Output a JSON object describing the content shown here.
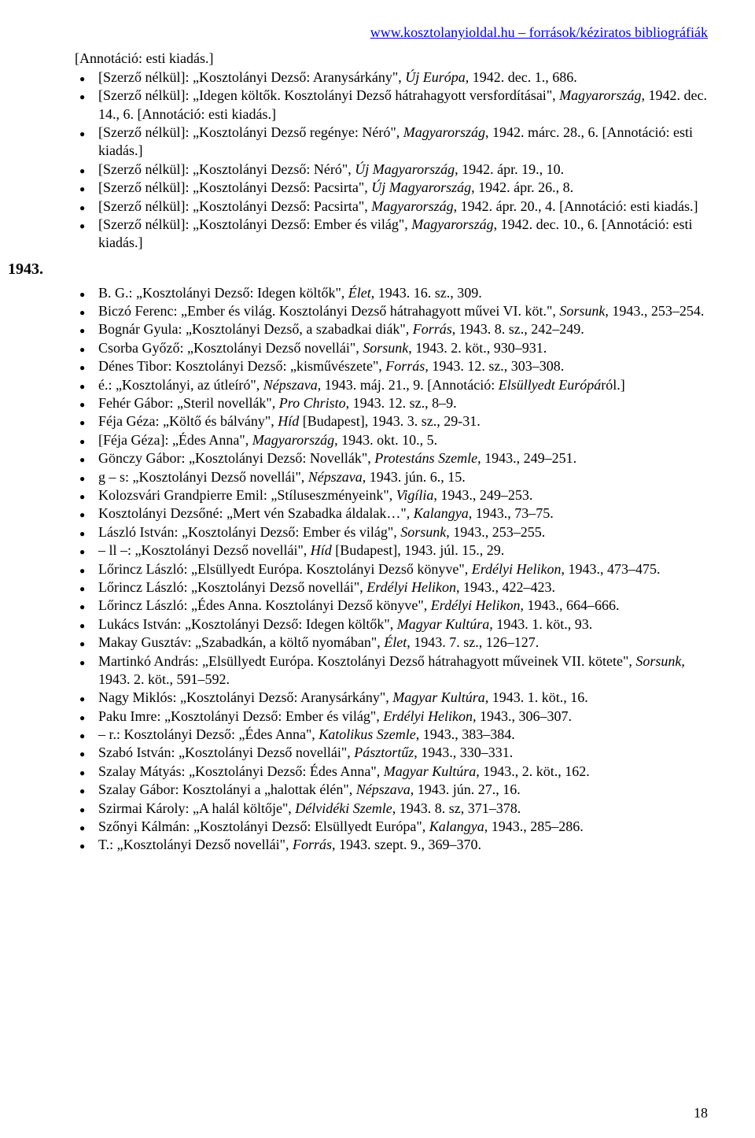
{
  "header_url": "www.kosztolanyioldal.hu – források/kéziratos bibliográfiák",
  "intro_note": "[Annotáció: esti kiadás.]",
  "section1": [
    "[Szerző nélkül]: „Kosztolányi Dezső: Aranysárkány\", <i>Új Európa</i>, 1942. dec. 1., 686.",
    "[Szerző nélkül]: „Idegen költők. Kosztolányi Dezső hátrahagyott versfordításai\", <i>Magyarország</i>, 1942. dec. 14., 6. [Annotáció: esti kiadás.]",
    "[Szerző nélkül]: „Kosztolányi Dezső regénye: Néró\", <i>Magyarország</i>, 1942. márc. 28., 6. [Annotáció: esti kiadás.]",
    "[Szerző nélkül]: „Kosztolányi Dezső: Néró\", <i>Új Magyarország</i>, 1942. ápr. 19., 10.",
    "[Szerző nélkül]: „Kosztolányi Dezső: Pacsirta\", <i>Új Magyarország</i>, 1942. ápr. 26., 8.",
    "[Szerző nélkül]: „Kosztolányi Dezső: Pacsirta\", <i>Magyarország</i>, 1942. ápr. 20., 4. [Annotáció: esti kiadás.]",
    "[Szerző nélkül]: „Kosztolányi Dezső: Ember és világ\", <i>Magyarország</i>, 1942. dec. 10., 6. [Annotáció: esti kiadás.]"
  ],
  "year": "1943.",
  "section2": [
    "B. G.: „Kosztolányi Dezső: Idegen költők\", <i>Élet</i>, 1943. 16. sz., 309.",
    "Biczó Ferenc: „Ember és világ. Kosztolányi Dezső hátrahagyott művei VI. köt.\", <i>Sorsunk</i>, 1943., 253–254.",
    "Bognár Gyula: „Kosztolányi Dezső, a szabadkai diák\", <i>Forrás</i>, 1943. 8. sz., 242–249.",
    "Csorba Győző: „Kosztolányi Dezső novellái\", <i>Sorsunk</i>, 1943. 2. köt., 930–931.",
    "Dénes Tibor: Kosztolányi Dezső: „kisművészete\", <i>Forrás</i>, 1943. 12. sz., 303–308.",
    "é.: „Kosztolányi, az útleíró\", <i>Népszava</i>, 1943. máj. 21., 9. [Annotáció: <i>Elsüllyedt Európá</i>ról.]",
    "Fehér Gábor: „Steril novellák\", <i>Pro Christo</i>, 1943. 12. sz., 8–9.",
    "Féja Géza: „Költő és bálvány\", <i>Híd</i> [Budapest], 1943. 3. sz., 29-31.",
    "[Féja Géza]: „Édes Anna\", <i>Magyarország</i>, 1943. okt. 10., 5.",
    "Gönczy Gábor: „Kosztolányi Dezső: Novellák\", <i>Protestáns Szemle</i>, 1943., 249–251.",
    "g – s: „Kosztolányi Dezső novellái\", <i>Népszava</i>, 1943. jún. 6., 15.",
    "Kolozsvári Grandpierre Emil: „Stíluseszményeink\", <i>Vigília</i>, 1943., 249–253.",
    "Kosztolányi Dezsőné: „Mert vén Szabadka áldalak…\", <i>Kalangya</i>, 1943., 73–75.",
    "László István: „Kosztolányi Dezső: Ember és világ\", <i>Sorsunk</i>, 1943., 253–255.",
    "– ll –: „Kosztolányi Dezső novellái\", <i>Híd</i> [Budapest], 1943. júl. 15., 29.",
    "Lőrincz László: „Elsüllyedt Európa. Kosztolányi Dezső könyve\", <i>Erdélyi Helikon</i>, 1943., 473–475.",
    "Lőrincz László: „Kosztolányi Dezső novellái\", <i>Erdélyi Helikon</i>, 1943., 422–423.",
    "Lőrincz László: „Édes Anna. Kosztolányi Dezső könyve\", <i>Erdélyi Helikon</i>, 1943., 664–666.",
    "Lukács István: „Kosztolányi Dezső: Idegen költők\", <i>Magyar Kultúra</i>, 1943. 1. köt., 93.",
    "Makay Gusztáv: „Szabadkán, a költő nyomában\", <i>Élet</i>, 1943. 7. sz., 126–127.",
    "Martinkó András: „Elsüllyedt Európa. Kosztolányi Dezső hátrahagyott műveinek VII. kötete\", <i>Sorsunk</i>, 1943. 2. köt., 591–592.",
    "Nagy Miklós: „Kosztolányi Dezső: Aranysárkány\", <i>Magyar Kultúra</i>, 1943. 1. köt., 16.",
    "Paku Imre: „Kosztolányi Dezső: Ember és világ\", <i>Erdélyi Helikon</i>, 1943., 306–307.",
    "– r.: Kosztolányi Dezső: „Édes Anna\", <i>Katolikus Szemle</i>, 1943., 383–384.",
    "Szabó István: „Kosztolányi Dezső novellái\", <i>Pásztortűz</i>, 1943., 330–331.",
    "Szalay Mátyás: „Kosztolányi Dezső: Édes Anna\", <i>Magyar Kultúra</i>, 1943., 2. köt., 162.",
    "Szalay Gábor: Kosztolányi a „halottak élén\", <i>Népszava</i>, 1943. jún. 27., 16.",
    "Szirmai Károly: „A halál költője\", <i>Délvidéki Szemle</i>, 1943. 8. sz, 371–378.",
    "Szőnyi Kálmán: „Kosztolányi Dezső: Elsüllyedt Európa\", <i>Kalangya</i>, 1943., 285–286.",
    "T.: „Kosztolányi Dezső novellái\", <i>Forrás</i>, 1943. szept. 9., 369–370."
  ],
  "page_number": "18"
}
